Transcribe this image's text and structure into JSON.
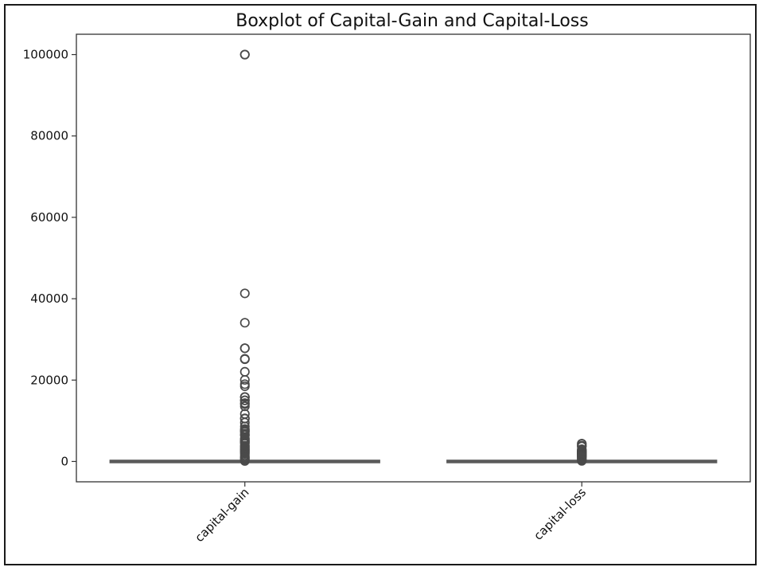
{
  "chart_data": {
    "type": "boxplot",
    "title": "Boxplot of Capital-Gain and Capital-Loss",
    "xlabel": "",
    "ylabel": "",
    "ylim": [
      -5000,
      105000
    ],
    "yticks": [
      0,
      20000,
      40000,
      60000,
      80000,
      100000
    ],
    "ytick_labels": [
      "0",
      "20000",
      "40000",
      "60000",
      "80000",
      "100000"
    ],
    "categories": [
      "capital-gain",
      "capital-loss"
    ],
    "grid": false,
    "legend": "none",
    "box_color": "#5a5a5a",
    "series": [
      {
        "category": "capital-gain",
        "min": 0,
        "q1": 0,
        "median": 0,
        "q3": 0,
        "max": 0,
        "outliers": [
          99999,
          99999,
          41310,
          34095,
          27828,
          27828,
          25236,
          25124,
          22040,
          20051,
          19000,
          18481,
          15831,
          15831,
          15024,
          15020,
          14344,
          14084,
          13550,
          11678,
          10605,
          10520,
          9562,
          8614,
          7978,
          7688,
          7430,
          7298,
          6849,
          6497,
          6418,
          5721,
          5455,
          5178,
          5013,
          4787,
          4650,
          4386,
          3908,
          3674,
          3411,
          3103,
          2885,
          2597,
          2407,
          2174,
          1848,
          1471,
          1055,
          914,
          594,
          401,
          114
        ]
      },
      {
        "category": "capital-loss",
        "min": 0,
        "q1": 0,
        "median": 0,
        "q3": 0,
        "max": 0,
        "outliers": [
          4356,
          4356,
          3900,
          3770,
          3683,
          3004,
          2824,
          2603,
          2559,
          2472,
          2444,
          2415,
          2392,
          2258,
          2205,
          2174,
          2129,
          2080,
          2057,
          2001,
          1977,
          1902,
          1887,
          1848,
          1816,
          1762,
          1740,
          1719,
          1669,
          1651,
          1602,
          1590,
          1564,
          1539,
          1504,
          1485,
          1408,
          1380,
          1340,
          1258,
          1138,
          974,
          880,
          653,
          419,
          323,
          213,
          155
        ]
      }
    ]
  }
}
